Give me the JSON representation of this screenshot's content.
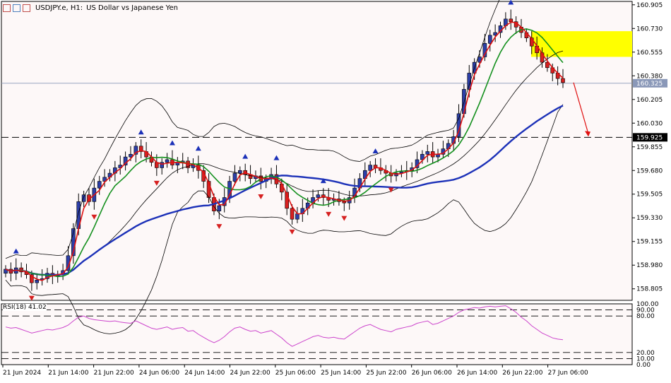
{
  "header": {
    "symbol": "USDJPY.e, H1:",
    "description": "US Dollar vs Japanese Yen"
  },
  "rsi_label": "RSI(18) 41.02",
  "colors": {
    "background": "#fdf8f8",
    "bull_candle": "#2c3ea8",
    "bear_candle": "#d62020",
    "fast_ma": "#e01010",
    "mid_ma": "#14901e",
    "slow_ma": "#1c31b8",
    "bands": "#000000",
    "rsi_line": "#cc44cc",
    "zone": "#ffff00",
    "arrow": "#e01010"
  },
  "chart_data": [
    {
      "type": "candlestick",
      "title": "USDJPY.e, H1: US Dollar vs Japanese Yen",
      "y_ticks": [
        "160.905",
        "160.730",
        "160.555",
        "160.380",
        "160.205",
        "160.030",
        "159.855",
        "159.680",
        "159.505",
        "159.330",
        "159.155",
        "158.980",
        "158.805"
      ],
      "x_ticks": [
        "21 Jun 2024",
        "21 Jun 14:00",
        "21 Jun 22:00",
        "24 Jun 06:00",
        "24 Jun 14:00",
        "24 Jun 22:00",
        "25 Jun 06:00",
        "25 Jun 14:00",
        "25 Jun 22:00",
        "26 Jun 06:00",
        "26 Jun 14:00",
        "26 Jun 22:00",
        "27 Jun 06:00"
      ],
      "ylim": [
        158.72,
        160.93
      ],
      "current_price": "160.325",
      "support_level": "159.925",
      "zone": [
        160.52,
        160.71
      ],
      "projection": {
        "from": 160.33,
        "to": 159.93
      },
      "series_close": [
        158.95,
        158.92,
        158.96,
        158.93,
        158.91,
        158.85,
        158.87,
        158.88,
        158.92,
        158.9,
        158.91,
        158.94,
        159.05,
        159.25,
        159.45,
        159.5,
        159.45,
        159.55,
        159.6,
        159.63,
        159.66,
        159.7,
        159.72,
        159.78,
        159.8,
        159.86,
        159.82,
        159.78,
        159.74,
        159.7,
        159.74,
        159.76,
        159.72,
        159.74,
        159.75,
        159.7,
        159.72,
        159.68,
        159.6,
        159.48,
        159.38,
        159.42,
        159.48,
        159.6,
        159.66,
        159.68,
        159.65,
        159.62,
        159.64,
        159.6,
        159.62,
        159.65,
        159.58,
        159.52,
        159.4,
        159.32,
        159.36,
        159.4,
        159.44,
        159.48,
        159.5,
        159.48,
        159.46,
        159.47,
        159.45,
        159.44,
        159.48,
        159.55,
        159.62,
        159.68,
        159.72,
        159.7,
        159.68,
        159.66,
        159.64,
        159.66,
        159.67,
        159.68,
        159.7,
        159.76,
        159.8,
        159.82,
        159.78,
        159.8,
        159.84,
        159.88,
        159.93,
        160.1,
        160.28,
        160.4,
        160.48,
        160.52,
        160.62,
        160.68,
        160.7,
        160.75,
        160.8,
        160.78,
        160.74,
        160.7,
        160.66,
        160.6,
        160.55,
        160.48,
        160.44,
        160.4,
        160.36,
        160.33
      ]
    },
    {
      "type": "line",
      "title": "RSI(18) 41.02",
      "ylim": [
        0,
        100
      ],
      "levels": [
        100,
        90,
        80,
        20,
        10,
        0
      ],
      "level_labels": [
        "100.00",
        "90.00",
        "80.00",
        "20.00",
        "10.00",
        "0.00"
      ],
      "series": [
        {
          "values": [
            62,
            60,
            61,
            58,
            55,
            52,
            54,
            56,
            58,
            57,
            59,
            61,
            65,
            72,
            78,
            80,
            76,
            74,
            73,
            72,
            71,
            72,
            70,
            69,
            68,
            72,
            68,
            64,
            60,
            58,
            60,
            62,
            58,
            60,
            61,
            55,
            56,
            50,
            45,
            40,
            36,
            40,
            46,
            54,
            60,
            62,
            58,
            55,
            56,
            52,
            54,
            56,
            50,
            44,
            36,
            30,
            34,
            38,
            42,
            46,
            48,
            45,
            44,
            45,
            43,
            42,
            48,
            54,
            60,
            64,
            66,
            62,
            58,
            56,
            54,
            58,
            60,
            62,
            64,
            68,
            70,
            72,
            66,
            68,
            72,
            76,
            80,
            86,
            90,
            92,
            94,
            93,
            95,
            96,
            95,
            96,
            97,
            92,
            86,
            78,
            72,
            64,
            58,
            52,
            48,
            44,
            42,
            41
          ]
        }
      ]
    }
  ]
}
